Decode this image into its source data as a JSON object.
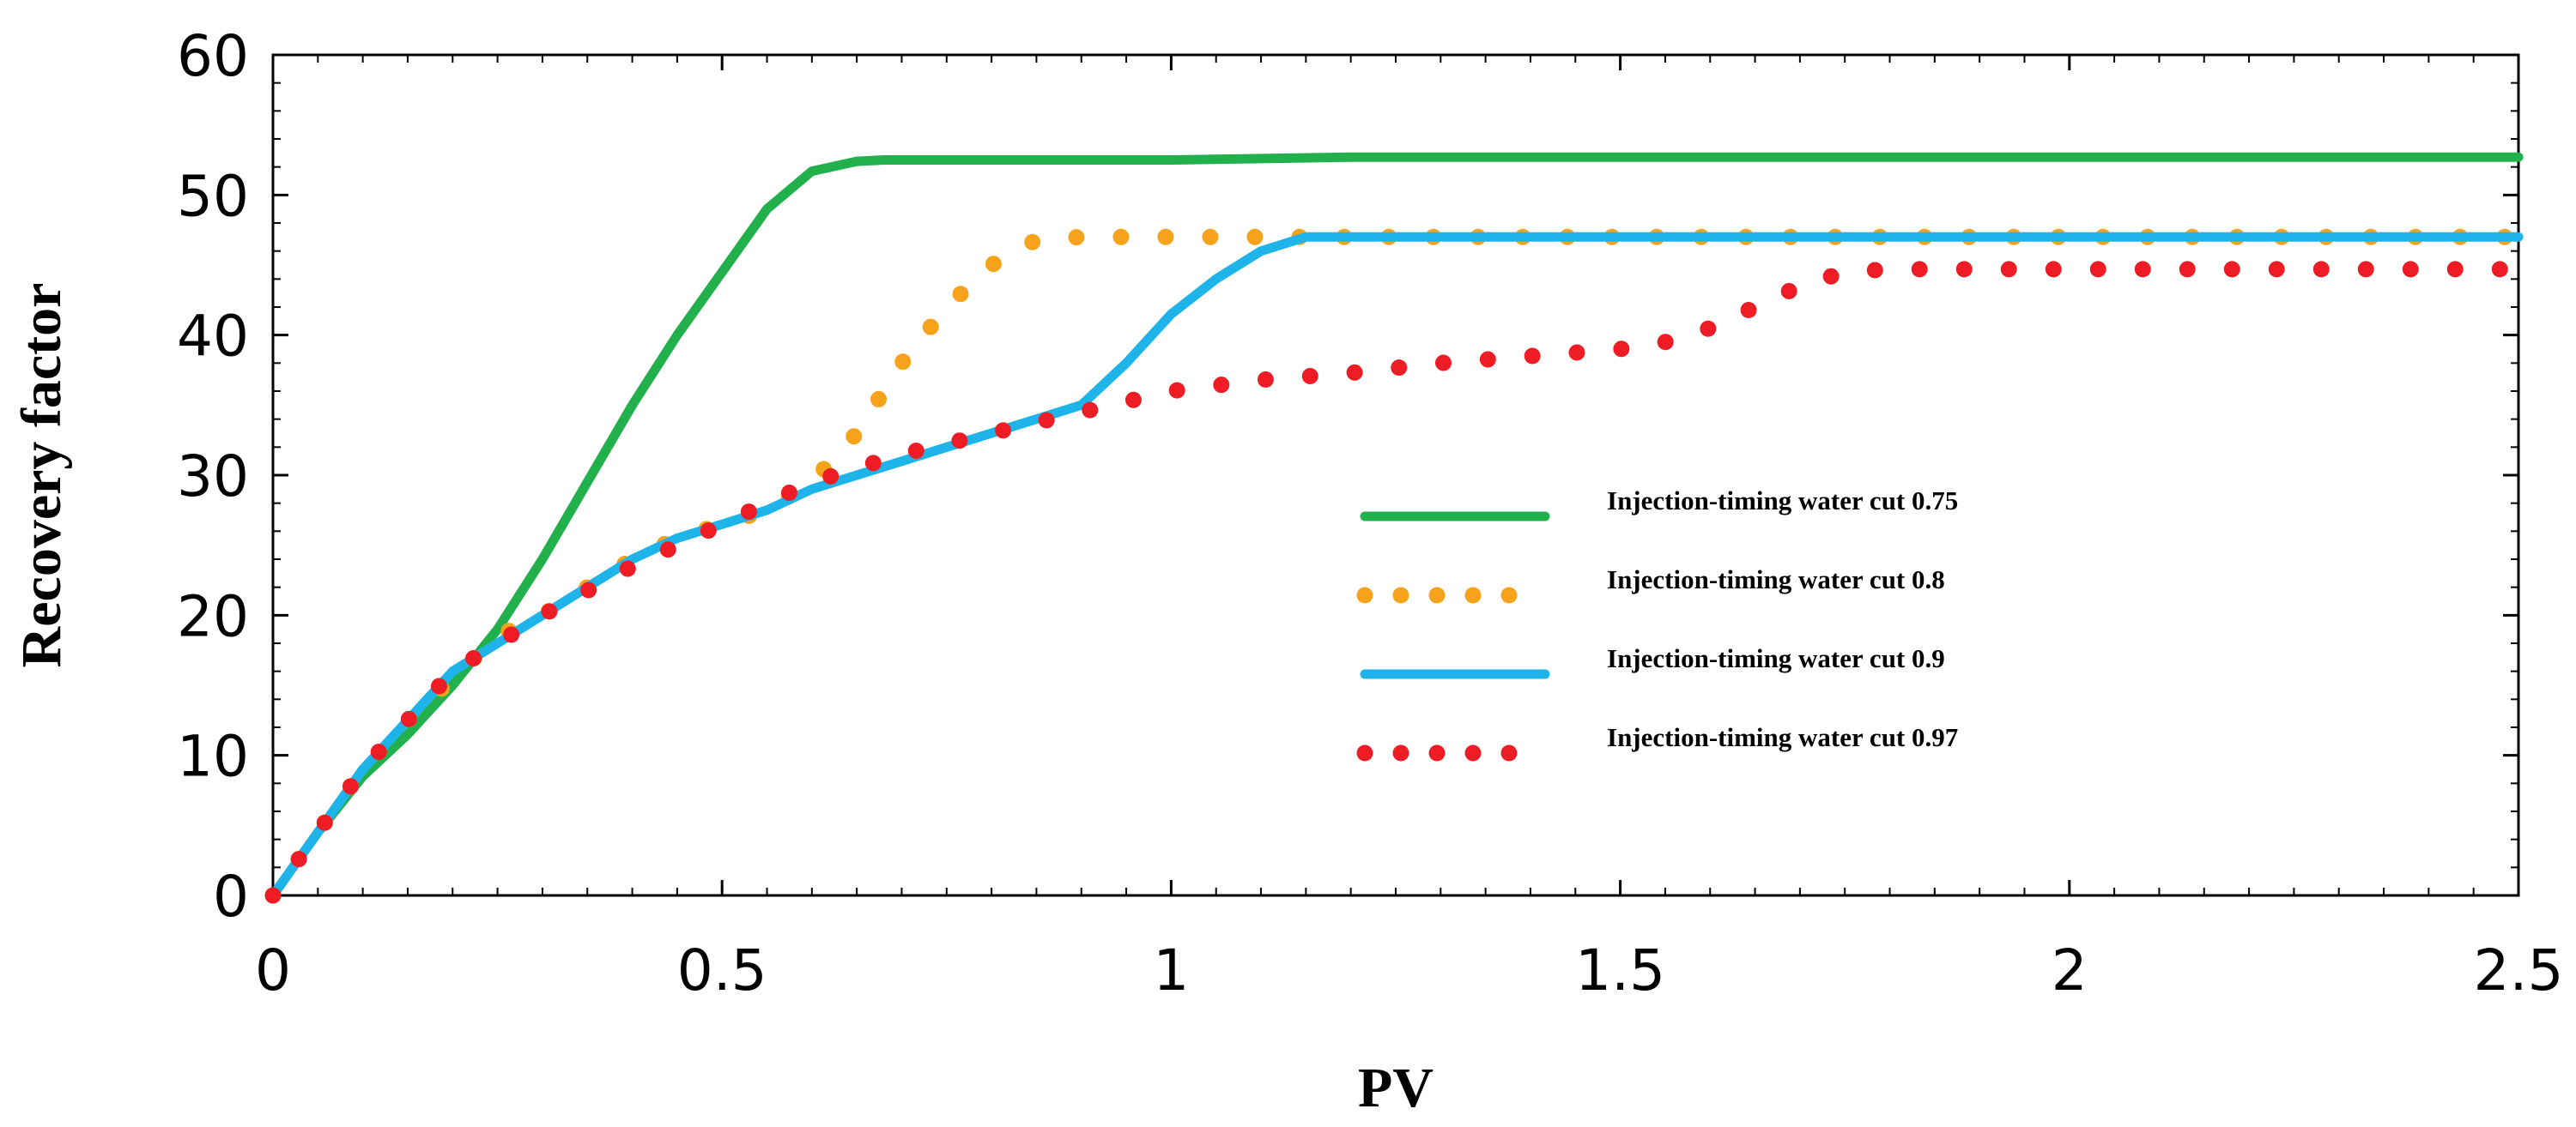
{
  "chart_data": {
    "type": "line",
    "title": "",
    "xlabel": "PV",
    "ylabel": "Recovery factor",
    "xlim": [
      0,
      2.5
    ],
    "ylim": [
      0,
      60
    ],
    "xticks": [
      0,
      0.5,
      1,
      1.5,
      2,
      2.5
    ],
    "xtick_labels": [
      "0",
      "0.5",
      "1",
      "1.5",
      "2",
      "2.5"
    ],
    "yticks": [
      0,
      10,
      20,
      30,
      40,
      50,
      60
    ],
    "ytick_labels": [
      "0",
      "10",
      "20",
      "30",
      "40",
      "50",
      "60"
    ],
    "grid": false,
    "legend_position": "center-right",
    "series": [
      {
        "name": "Injection-timing water cut 0.75",
        "color": "#21b04b",
        "style": "solid",
        "x": [
          0,
          0.05,
          0.1,
          0.15,
          0.2,
          0.25,
          0.3,
          0.35,
          0.4,
          0.45,
          0.5,
          0.55,
          0.6,
          0.65,
          0.68,
          0.8,
          1.0,
          1.2,
          1.5,
          2.0,
          2.5
        ],
        "y": [
          0,
          4.5,
          8.5,
          11.5,
          15,
          19,
          24,
          29.5,
          35,
          40,
          44.5,
          49,
          51.7,
          52.4,
          52.5,
          52.5,
          52.5,
          52.7,
          52.7,
          52.7,
          52.7
        ]
      },
      {
        "name": "Injection-timing water cut 0.8",
        "color": "#f7a21b",
        "style": "dotted",
        "x": [
          0,
          0.05,
          0.1,
          0.15,
          0.2,
          0.25,
          0.3,
          0.35,
          0.4,
          0.45,
          0.5,
          0.55,
          0.6,
          0.65,
          0.7,
          0.75,
          0.8,
          0.85,
          0.9,
          1.0,
          1.5,
          2.0,
          2.5
        ],
        "y": [
          0,
          4.5,
          9,
          12.5,
          15.5,
          18.5,
          20,
          22,
          24,
          25.5,
          26.5,
          27.5,
          29.5,
          33,
          38,
          42,
          45,
          46.8,
          47,
          47,
          47,
          47,
          47
        ]
      },
      {
        "name": "Injection-timing water cut 0.9",
        "color": "#1eb4ea",
        "style": "solid",
        "x": [
          0,
          0.05,
          0.1,
          0.15,
          0.2,
          0.25,
          0.3,
          0.35,
          0.4,
          0.45,
          0.5,
          0.55,
          0.6,
          0.65,
          0.7,
          0.8,
          0.9,
          0.95,
          1.0,
          1.05,
          1.1,
          1.15,
          1.2,
          1.5,
          2.0,
          2.5
        ],
        "y": [
          0,
          4.5,
          9,
          12.5,
          16,
          18,
          20,
          22,
          24,
          25.5,
          26.5,
          27.5,
          29,
          30,
          31,
          33,
          35,
          38,
          41.5,
          44,
          46,
          47,
          47,
          47,
          47,
          47
        ]
      },
      {
        "name": "Injection-timing water cut 0.97",
        "color": "#ee1c24",
        "style": "dotted",
        "x": [
          0,
          0.05,
          0.1,
          0.15,
          0.2,
          0.25,
          0.3,
          0.4,
          0.5,
          0.6,
          0.7,
          0.8,
          0.9,
          1.0,
          1.1,
          1.2,
          1.3,
          1.4,
          1.5,
          1.55,
          1.6,
          1.65,
          1.7,
          1.75,
          1.8,
          2.0,
          2.5
        ],
        "y": [
          0,
          4.5,
          9,
          12.5,
          16,
          18,
          20,
          23.5,
          26.5,
          29.5,
          31.5,
          33,
          34.5,
          36,
          36.8,
          37.3,
          38,
          38.5,
          39,
          39.5,
          40.5,
          42,
          43.5,
          44.5,
          44.7,
          44.7,
          44.7
        ]
      }
    ]
  }
}
